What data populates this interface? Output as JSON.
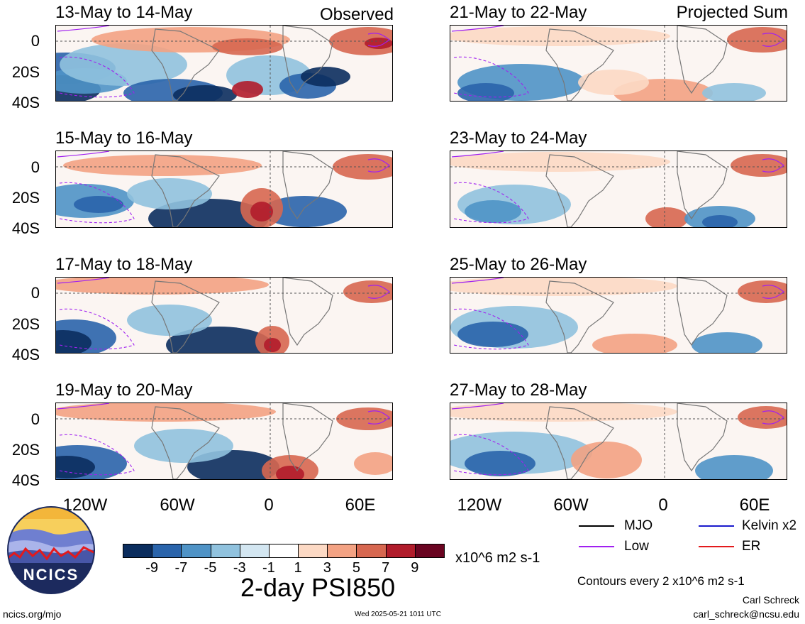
{
  "observed_label": "Observed",
  "projected_label": "Projected Sum",
  "panels_left": [
    {
      "title": "13-May to 14-May"
    },
    {
      "title": "15-May to 16-May"
    },
    {
      "title": "17-May to 18-May"
    },
    {
      "title": "19-May to 20-May"
    }
  ],
  "panels_right": [
    {
      "title": "21-May to 22-May"
    },
    {
      "title": "23-May to 24-May"
    },
    {
      "title": "25-May to 26-May"
    },
    {
      "title": "27-May to 28-May"
    }
  ],
  "lat_labels": [
    "0",
    "20S",
    "40S"
  ],
  "lon_labels": [
    "120W",
    "60W",
    "0",
    "60E"
  ],
  "colorbar": {
    "colors": [
      "#0b2d5e",
      "#2a64ab",
      "#4f93c6",
      "#90c2de",
      "#d3e6f1",
      "#ffffff",
      "#fcd9c4",
      "#f3a283",
      "#d76750",
      "#b11c2b",
      "#6a0421"
    ],
    "ticks": [
      "-9",
      "-7",
      "-5",
      "-3",
      "-1",
      "1",
      "3",
      "5",
      "7",
      "9"
    ],
    "units": "x10^6 m2 s-1"
  },
  "main_title": "2-day PSI850",
  "legend": {
    "items": [
      {
        "label": "MJO",
        "color": "#000000"
      },
      {
        "label": "Kelvin x2",
        "color": "#1a1acc"
      },
      {
        "label": "Low",
        "color": "#a020f0"
      },
      {
        "label": "ER",
        "color": "#e31a1c"
      }
    ],
    "contour_note": "Contours every 2 x10^6 m2 s-1"
  },
  "logo_text": "NCICS",
  "footer": {
    "left_url": "ncics.org/mjo",
    "timestamp": "Wed 2025-05-21 1011 UTC",
    "author": "Carl Schreck",
    "email": "carl_schreck@ncsu.edu"
  }
}
